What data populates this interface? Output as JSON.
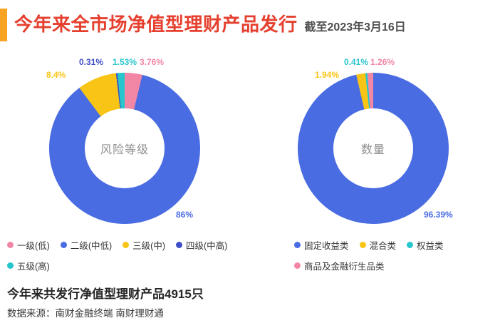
{
  "header": {
    "title": "今年来全市场净值型理财产品发行",
    "date_note": "截至2023年3月16日"
  },
  "chart_data": [
    {
      "type": "pie",
      "center_label": "风险等级",
      "legend_position": "bottom",
      "segments": [
        {
          "name": "一级(低)",
          "value": 3.76,
          "display": "3.76%",
          "color": "#F287A5"
        },
        {
          "name": "二级(中低)",
          "value": 86,
          "display": "86%",
          "color": "#4A6CE3"
        },
        {
          "name": "三级(中)",
          "value": 8.4,
          "display": "8.4%",
          "color": "#F8C516"
        },
        {
          "name": "四级(中高)",
          "value": 0.31,
          "display": "0.31%",
          "color": "#3D4EC8"
        },
        {
          "name": "五级(高)",
          "value": 1.53,
          "display": "1.53%",
          "color": "#27C5CC"
        }
      ]
    },
    {
      "type": "pie",
      "center_label": "数量",
      "legend_position": "bottom",
      "segments": [
        {
          "name": "固定收益类",
          "value": 96.39,
          "display": "96.39%",
          "color": "#4A6CE3"
        },
        {
          "name": "混合类",
          "value": 1.94,
          "display": "1.94%",
          "color": "#F8C516"
        },
        {
          "name": "权益类",
          "value": 0.41,
          "display": "0.41%",
          "color": "#27C5CC"
        },
        {
          "name": "商品及金融衍生品类",
          "value": 1.26,
          "display": "1.26%",
          "color": "#F287A5"
        }
      ]
    }
  ],
  "footer": {
    "summary": "今年来共发行净值型理财产品4915只",
    "source": "数据来源：南财金融终端 南财理财通"
  }
}
